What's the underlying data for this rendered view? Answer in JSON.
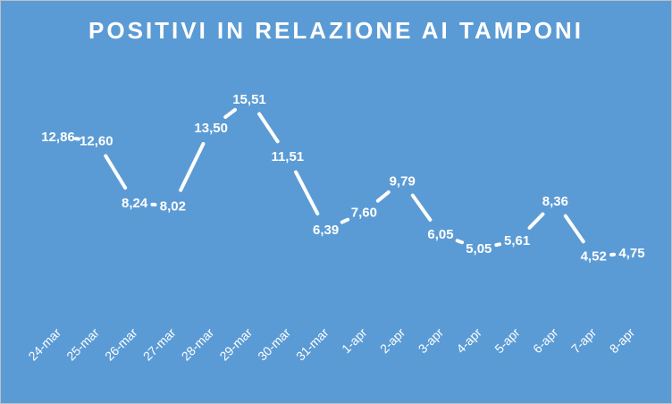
{
  "chart_data": {
    "type": "line",
    "title": "POSITIVI IN RELAZIONE AI TAMPONI",
    "categories": [
      "24-mar",
      "25-mar",
      "26-mar",
      "27-mar",
      "28-mar",
      "29-mar",
      "30-mar",
      "31-mar",
      "1-apr",
      "2-apr",
      "3-apr",
      "4-apr",
      "5-apr",
      "6-apr",
      "7-apr",
      "8-apr"
    ],
    "series": [
      {
        "values": [
          12.86,
          12.6,
          8.24,
          8.02,
          13.5,
          15.51,
          11.51,
          6.39,
          7.6,
          9.79,
          6.05,
          5.05,
          5.61,
          8.36,
          4.52,
          4.75
        ],
        "labels": [
          "12,86",
          "12,60",
          "8,24",
          "8,02",
          "13,50",
          "15,51",
          "11,51",
          "6,39",
          "7,60",
          "9,79",
          "6,05",
          "5,05",
          "5,61",
          "8,36",
          "4,52",
          "4,75"
        ]
      }
    ],
    "xlabel": "",
    "ylabel": "",
    "drop_lines": true,
    "grid": false,
    "legend": "none",
    "colors": {
      "background": "#5b9bd5",
      "line": "#ffffff",
      "text": "#ffffff"
    }
  }
}
